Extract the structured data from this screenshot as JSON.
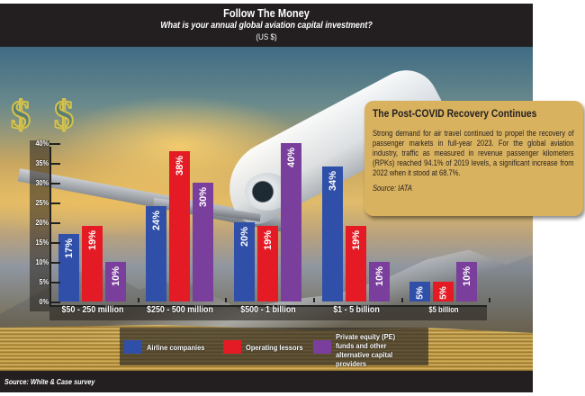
{
  "header": {
    "title": "Follow The Money",
    "subtitle": "What is your annual global aviation capital investment?",
    "unit": "(US $)"
  },
  "callout": {
    "title": "The Post-COVID Recovery Continues",
    "body": "Strong demand for air travel continued to propel the recovery of passenger markets in full-year 2023. For the global aviation industry, traffic as measured in revenue passenger kilometers (RPKs) reached 94.1% of 2019 levels, a significant increase from 2022 when it stood at 68.7%.",
    "source": "Source: IATA"
  },
  "footer": {
    "source": "Source: White & Case survey"
  },
  "colors": {
    "airline": "#2f4fa8",
    "lessor": "#e41b24",
    "pe": "#7a3f9c",
    "callout_bg": "#d9b25f",
    "frame": "#231f20"
  },
  "legend": [
    {
      "label": "Airline companies",
      "color": "#2f4fa8"
    },
    {
      "label": "Operating lessors",
      "color": "#e41b24"
    },
    {
      "label": "Private equity (PE) funds and other alternative capital providers",
      "color": "#7a3f9c"
    }
  ],
  "chart_data": {
    "type": "bar",
    "title": "Follow The Money",
    "subtitle": "What is your annual global aviation capital investment? (US $)",
    "xlabel": "",
    "ylabel": "",
    "ylim": [
      0,
      40
    ],
    "yticks": [
      "0%",
      "5%",
      "10%",
      "15%",
      "20%",
      "25%",
      "30%",
      "35%",
      "40%"
    ],
    "categories": [
      "$50 - 250 million",
      "$250 - 500 million",
      "$500 - 1 billion",
      "$1 - 5 billion",
      "$5 billion"
    ],
    "series": [
      {
        "name": "Airline companies",
        "values": [
          17,
          24,
          20,
          34,
          5
        ],
        "labels": [
          "17%",
          "24%",
          "20%",
          "34%",
          "5%"
        ]
      },
      {
        "name": "Operating lessors",
        "values": [
          19,
          38,
          19,
          19,
          5
        ],
        "labels": [
          "19%",
          "38%",
          "19%",
          "19%",
          "5%"
        ]
      },
      {
        "name": "Private equity (PE) funds and other alternative capital providers",
        "values": [
          10,
          30,
          40,
          10,
          10
        ],
        "labels": [
          "10%",
          "30%",
          "40%",
          "10%",
          "10%"
        ]
      }
    ],
    "grid": false,
    "legend_position": "bottom",
    "source": "Source: White & Case survey"
  }
}
